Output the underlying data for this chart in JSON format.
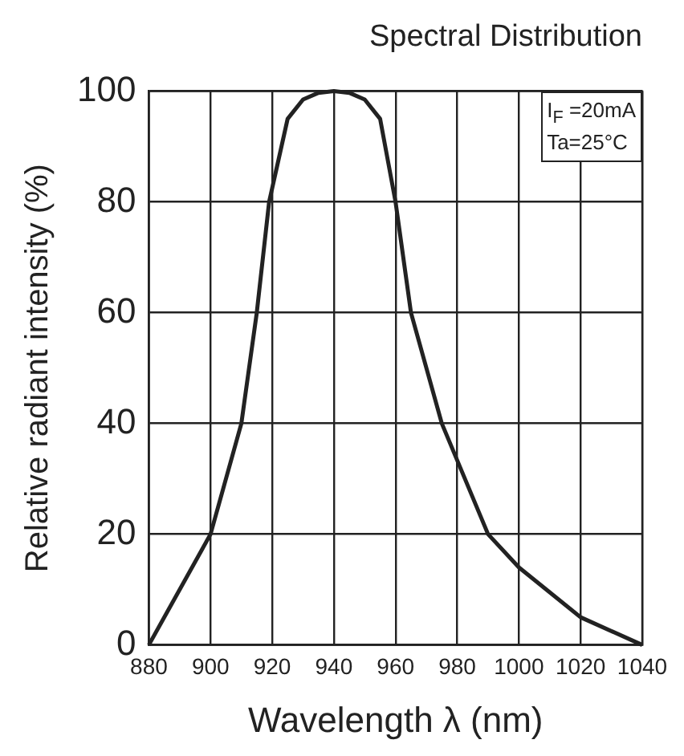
{
  "chart_data": {
    "type": "line",
    "title": "Spectral Distribution",
    "xlabel": "Wavelength λ (nm)",
    "ylabel": "Relative radiant intensity (%)",
    "annotations": [
      "I$_{F}$ =20mA",
      "Ta=25°C"
    ],
    "x": [
      880,
      900,
      910,
      915,
      919,
      925,
      930,
      935,
      940,
      945,
      950,
      955,
      960,
      965,
      975,
      990,
      1000,
      1020,
      1040
    ],
    "series": [
      {
        "color": "#222222",
        "values": [
          0,
          20,
          40,
          60,
          80,
          95,
          98.5,
          99.7,
          100,
          99.7,
          98.5,
          95,
          80,
          60,
          40,
          20,
          14,
          5,
          0
        ]
      }
    ],
    "xlim": [
      880,
      1040
    ],
    "xticks": [
      880,
      900,
      920,
      940,
      960,
      980,
      1000,
      1020,
      1040
    ],
    "ylim": [
      0,
      100
    ],
    "yticks": [
      0,
      20,
      40,
      60,
      80,
      100
    ],
    "grid": true,
    "legend": false,
    "marker": "none",
    "line_style": "solid"
  }
}
